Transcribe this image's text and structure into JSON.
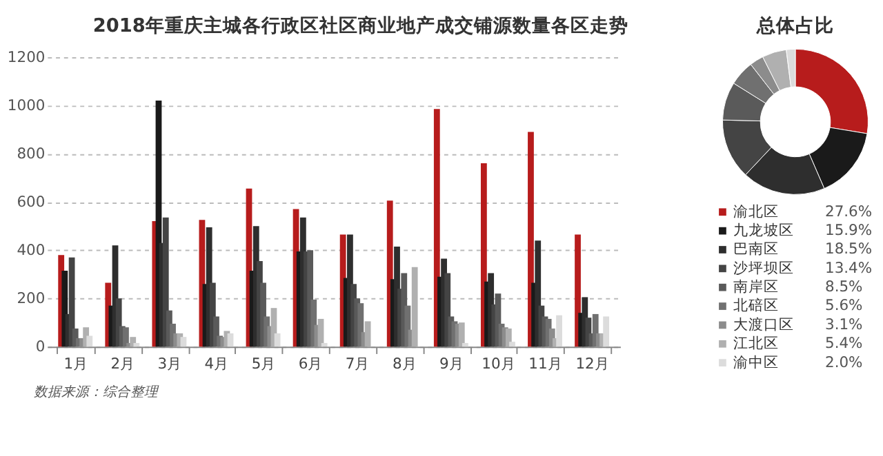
{
  "chart_data": [
    {
      "type": "bar",
      "title": "2018年重庆主城各行政区社区商业地产成交铺源数量各区走势",
      "categories": [
        "1月",
        "2月",
        "3月",
        "4月",
        "5月",
        "6月",
        "7月",
        "8月",
        "9月",
        "10月",
        "11月",
        "12月"
      ],
      "series": [
        {
          "color": "#b71c1c",
          "values": [
            380,
            265,
            520,
            525,
            655,
            570,
            465,
            605,
            985,
            760,
            890,
            465
          ]
        },
        {
          "color": "#1a1a1a",
          "values": [
            315,
            170,
            1020,
            260,
            315,
            395,
            285,
            280,
            290,
            270,
            265,
            140
          ]
        },
        {
          "color": "#2e2e2e",
          "values": [
            135,
            420,
            430,
            495,
            500,
            535,
            465,
            415,
            365,
            305,
            440,
            205
          ]
        },
        {
          "color": "#444444",
          "values": [
            370,
            200,
            535,
            265,
            355,
            395,
            260,
            240,
            305,
            175,
            170,
            120
          ]
        },
        {
          "color": "#5a5a5a",
          "values": [
            75,
            85,
            150,
            125,
            265,
            400,
            200,
            305,
            125,
            220,
            125,
            55
          ]
        },
        {
          "color": "#707070",
          "values": [
            35,
            80,
            95,
            45,
            125,
            195,
            180,
            170,
            105,
            95,
            115,
            135
          ]
        },
        {
          "color": "#8c8c8c",
          "values": [
            35,
            15,
            55,
            40,
            85,
            90,
            60,
            70,
            95,
            80,
            75,
            55
          ]
        },
        {
          "color": "#b0b0b0",
          "values": [
            80,
            40,
            55,
            65,
            160,
            115,
            105,
            330,
            100,
            75,
            35,
            55
          ]
        },
        {
          "color": "#dcdcdc",
          "values": [
            45,
            15,
            40,
            55,
            55,
            15,
            null,
            null,
            15,
            20,
            130,
            125
          ]
        }
      ],
      "ylim": [
        0,
        1200
      ],
      "yticks": [
        0,
        200,
        400,
        600,
        800,
        1000,
        1200
      ],
      "grid": "y",
      "annotations": [
        "数据来源：综合整理"
      ]
    },
    {
      "type": "donut",
      "title": "总体占比",
      "categories": [
        "渝北区",
        "九龙坡区",
        "巴南区",
        "沙坪坝区",
        "南岸区",
        "北碚区",
        "大渡口区",
        "江北区",
        "渝中区"
      ],
      "values": [
        27.6,
        15.9,
        18.5,
        13.4,
        8.5,
        5.6,
        3.1,
        5.4,
        2.0
      ],
      "colors": [
        "#b71c1c",
        "#1a1a1a",
        "#2e2e2e",
        "#444444",
        "#5a5a5a",
        "#707070",
        "#8c8c8c",
        "#b0b0b0",
        "#dcdcdc"
      ],
      "value_labels": [
        "27.6%",
        "15.9%",
        "18.5%",
        "13.4%",
        "8.5%",
        "5.6%",
        "3.1%",
        "5.4%",
        "2.0%"
      ],
      "legend": "bottom"
    }
  ]
}
